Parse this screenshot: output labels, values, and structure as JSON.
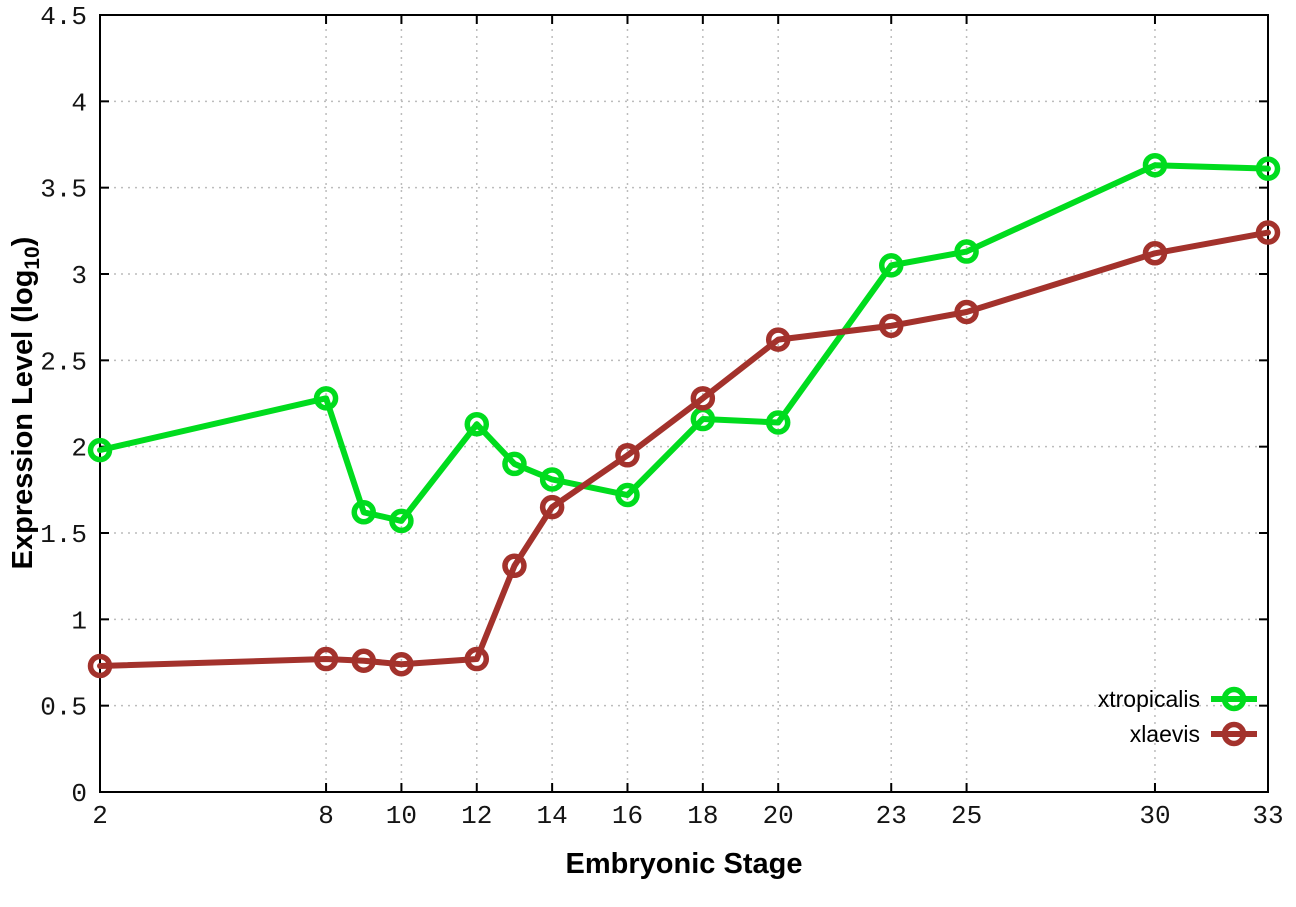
{
  "chart_data": {
    "type": "line",
    "title": "",
    "xlabel": "Embryonic Stage",
    "ylabel": "Expression Level (log10)",
    "ylabel_display": {
      "prefix": "Expression Level (log",
      "subscript": "10",
      "suffix": ")"
    },
    "x": [
      2,
      8,
      9,
      10,
      12,
      13,
      14,
      16,
      18,
      20,
      23,
      25,
      30,
      33
    ],
    "xticks": [
      2,
      8,
      10,
      12,
      14,
      16,
      18,
      20,
      23,
      25,
      30,
      33
    ],
    "yticks": [
      0,
      0.5,
      1,
      1.5,
      2,
      2.5,
      3,
      3.5,
      4,
      4.5
    ],
    "xlim": [
      2,
      33
    ],
    "ylim": [
      0,
      4.5
    ],
    "grid": true,
    "legend_position": "inside-bottom-right",
    "marker": "open-circle",
    "series": [
      {
        "name": "xtropicalis",
        "color": "#00DC1E",
        "values": [
          1.98,
          2.28,
          1.62,
          1.57,
          2.13,
          1.9,
          1.81,
          1.72,
          2.16,
          2.14,
          3.05,
          3.13,
          3.63,
          3.61
        ]
      },
      {
        "name": "xlaevis",
        "color": "#A3322C",
        "values": [
          0.73,
          0.77,
          0.76,
          0.74,
          0.77,
          1.31,
          1.65,
          1.95,
          2.28,
          2.62,
          2.7,
          2.78,
          3.12,
          3.24
        ]
      }
    ],
    "colors": {
      "axis": "#000000",
      "grid": "#bcbcbc",
      "background": "#ffffff"
    }
  }
}
